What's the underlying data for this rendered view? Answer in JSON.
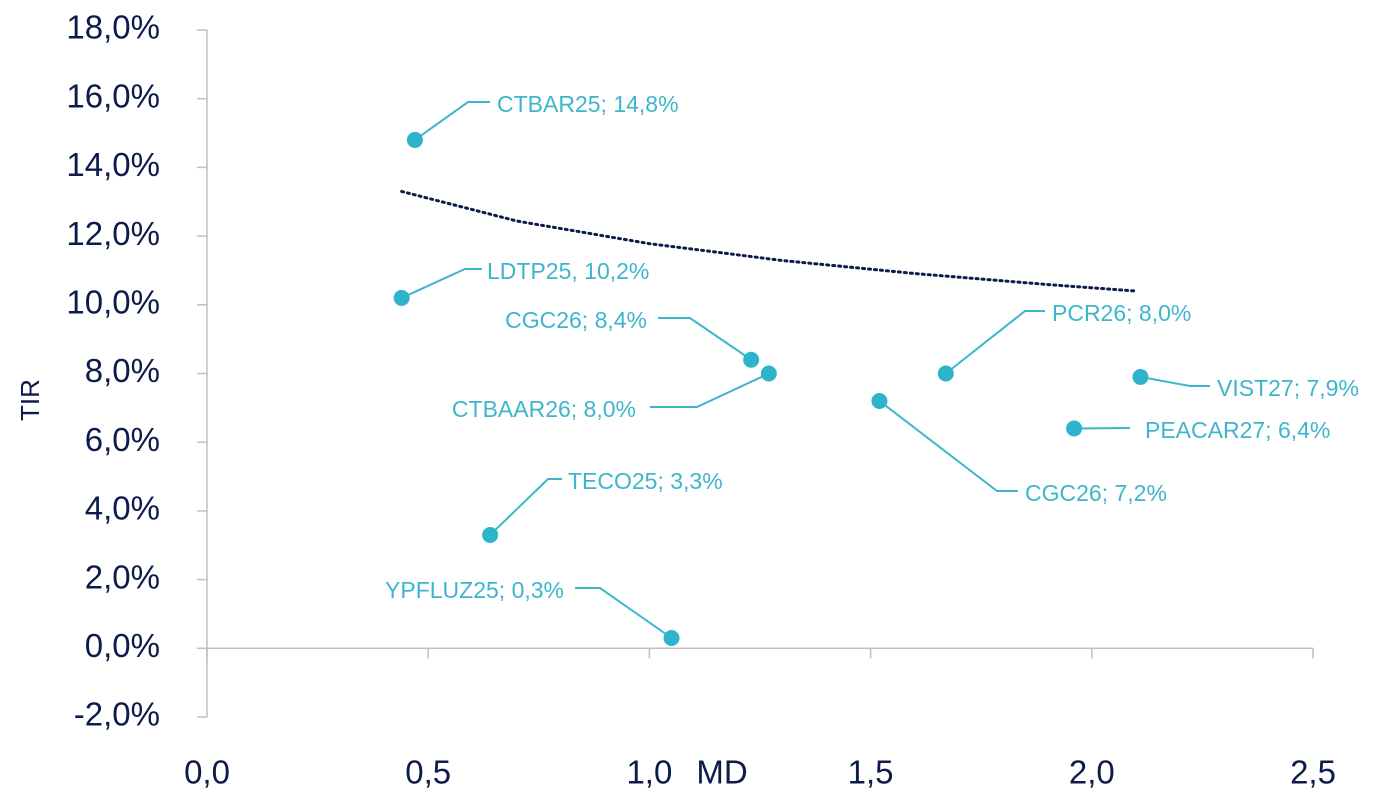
{
  "chart_data": {
    "type": "scatter",
    "x_label": "MD",
    "y_label": "TIR",
    "x": [
      0.47,
      0.44,
      1.23,
      1.27,
      1.67,
      1.52,
      2.11,
      1.96,
      0.64,
      1.05
    ],
    "values": [
      14.8,
      10.2,
      8.4,
      8.0,
      8.0,
      7.2,
      7.9,
      6.4,
      3.3,
      0.3
    ],
    "value_labels": [
      "CTBAR25;  14,8%",
      "LDTP25, 10,2%",
      "CGC26; 8,4%",
      "CTBAAR26;  8,0%",
      "PCR26; 8,0%",
      "CGC26; 7,2%",
      "VIST27; 7,9%",
      "PEACAR27;  6,4%",
      "TECO25; 3,3%",
      "YPFLUZ25;  0,3%"
    ],
    "color": "#2db4ca",
    "label_color": "#3db6cc",
    "trendline": {
      "x": [
        0.44,
        0.7,
        1.0,
        1.3,
        1.6,
        1.9,
        2.1
      ],
      "values": [
        13.3,
        12.44,
        11.78,
        11.29,
        10.91,
        10.59,
        10.4
      ],
      "color": "#0d1b4c"
    },
    "xlim": [
      0,
      2.5
    ],
    "xticks": [
      {
        "value": 0,
        "label": "0,0"
      },
      {
        "value": 0.5,
        "label": "0,5"
      },
      {
        "value": 1,
        "label": "1,0"
      },
      {
        "value": 1.5,
        "label": "1,5"
      },
      {
        "value": 2,
        "label": "2,0"
      },
      {
        "value": 2.5,
        "label": "2,5"
      }
    ],
    "ylim": [
      -2,
      18
    ],
    "yticks": [
      {
        "value": -2,
        "label": "-2,0%"
      },
      {
        "value": 0,
        "label": "0,0%"
      },
      {
        "value": 2,
        "label": "2,0%"
      },
      {
        "value": 4,
        "label": "4,0%"
      },
      {
        "value": 6,
        "label": "6,0%"
      },
      {
        "value": 8,
        "label": "8,0%"
      },
      {
        "value": 10,
        "label": "10,0%"
      },
      {
        "value": 12,
        "label": "12,0%"
      },
      {
        "value": 14,
        "label": "14,0%"
      },
      {
        "value": 16,
        "label": "16,0%"
      },
      {
        "value": 18,
        "label": "18,0%"
      }
    ]
  }
}
